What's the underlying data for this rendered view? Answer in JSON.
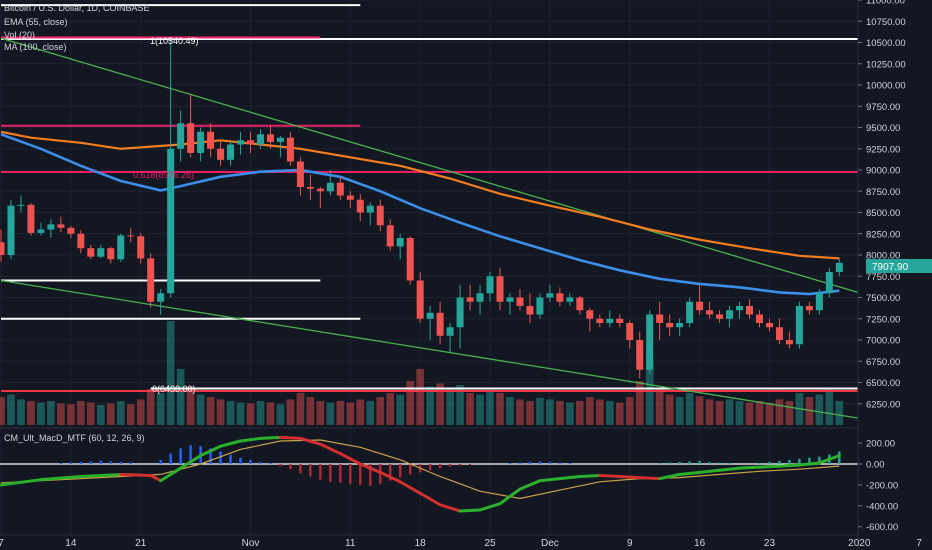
{
  "header": {
    "symbol_line": "Bitcoin / U.S. Dollar, 1D, COINBASE",
    "indicators": [
      "EMA (55, close)",
      "Vol (20)",
      "MA (100, close)"
    ],
    "macd_label": "CM_Ult_MacD_MTF (60, 12, 26, 9)"
  },
  "annotations": {
    "fib_1": "1(10540.49)",
    "fib_0618": "0.618(8976.28)",
    "fib_0": "0(6430.00)"
  },
  "last_price": "7907.90",
  "colors": {
    "background": "#131722",
    "up": "#26a69a",
    "down": "#ef5350",
    "ema55": "#f57c1f",
    "ma100": "#3d8ee8",
    "trend": "#4caf50",
    "fib_line": "#e91e63",
    "support": "#f23645",
    "macd_line": "#2ab02a",
    "signal_line": "#c9a24b"
  },
  "chart_data": [
    {
      "type": "candlestick",
      "title": "Bitcoin / U.S. Dollar, 1D, COINBASE",
      "ylim": [
        6000,
        11000
      ],
      "y_ticks": [
        6250,
        6500,
        6750,
        7000,
        7250,
        7500,
        7750,
        8000,
        8250,
        8500,
        8750,
        9000,
        9250,
        9500,
        9750,
        10000,
        10250,
        10500,
        10750,
        11000
      ],
      "y_tick_labels": [
        "6250.00",
        "6500.00",
        "6750.00",
        "7000.00",
        "7250.00",
        "7500.00",
        "7750.00",
        "8000.00",
        "8250.00",
        "8500.00",
        "8750.00",
        "9000.00",
        "9250.00",
        "9500.00",
        "9750.00",
        "10000.00",
        "10250.00",
        "10500.00",
        "10750.00",
        "11000.00"
      ],
      "x_tick_labels": [
        {
          "label": "7",
          "date": "2019-10-07"
        },
        {
          "label": "14",
          "date": "2019-10-14"
        },
        {
          "label": "21",
          "date": "2019-10-21"
        },
        {
          "label": "Nov",
          "date": "2019-11-01"
        },
        {
          "label": "11",
          "date": "2019-11-11"
        },
        {
          "label": "18",
          "date": "2019-11-18"
        },
        {
          "label": "25",
          "date": "2019-11-25"
        },
        {
          "label": "Dec",
          "date": "2019-12-01"
        },
        {
          "label": "9",
          "date": "2019-12-09"
        },
        {
          "label": "16",
          "date": "2019-12-16"
        },
        {
          "label": "23",
          "date": "2019-12-23"
        },
        {
          "label": "2020",
          "date": "2020-01-01"
        },
        {
          "label": "7",
          "date": "2020-01-07"
        }
      ],
      "start_date": "2019-10-07",
      "ohlc": [
        [
          8150,
          8300,
          7920,
          8000
        ],
        [
          8000,
          8650,
          7950,
          8580
        ],
        [
          8580,
          8700,
          8500,
          8590
        ],
        [
          8590,
          8610,
          8230,
          8260
        ],
        [
          8260,
          8380,
          8230,
          8300
        ],
        [
          8300,
          8420,
          8200,
          8360
        ],
        [
          8360,
          8450,
          8270,
          8320
        ],
        [
          8320,
          8340,
          8200,
          8250
        ],
        [
          8250,
          8290,
          8020,
          8080
        ],
        [
          8080,
          8120,
          7950,
          7980
        ],
        [
          7980,
          8120,
          7960,
          8080
        ],
        [
          8080,
          8100,
          7900,
          7950
        ],
        [
          7950,
          8250,
          7920,
          8230
        ],
        [
          8230,
          8320,
          8150,
          8220
        ],
        [
          8220,
          8260,
          7900,
          7960
        ],
        [
          7960,
          8020,
          7380,
          7450
        ],
        [
          7450,
          7600,
          7300,
          7550
        ],
        [
          7550,
          10540,
          7500,
          9250
        ],
        [
          9250,
          9700,
          9100,
          9550
        ],
        [
          9550,
          9900,
          9150,
          9200
        ],
        [
          9200,
          9500,
          9100,
          9450
        ],
        [
          9450,
          9550,
          9150,
          9250
        ],
        [
          9250,
          9350,
          9050,
          9120
        ],
        [
          9120,
          9350,
          9050,
          9300
        ],
        [
          9300,
          9450,
          9180,
          9350
        ],
        [
          9350,
          9450,
          9200,
          9300
        ],
        [
          9300,
          9480,
          9250,
          9420
        ],
        [
          9420,
          9520,
          9250,
          9330
        ],
        [
          9330,
          9400,
          9150,
          9380
        ],
        [
          9380,
          9450,
          9050,
          9100
        ],
        [
          9100,
          9150,
          8700,
          8800
        ],
        [
          8800,
          8950,
          8650,
          8780
        ],
        [
          8780,
          8800,
          8550,
          8750
        ],
        [
          8750,
          9000,
          8700,
          8850
        ],
        [
          8850,
          8920,
          8650,
          8700
        ],
        [
          8700,
          8750,
          8550,
          8650
        ],
        [
          8650,
          8720,
          8400,
          8500
        ],
        [
          8500,
          8620,
          8350,
          8580
        ],
        [
          8580,
          8650,
          8280,
          8350
        ],
        [
          8350,
          8420,
          8050,
          8100
        ],
        [
          8100,
          8250,
          7950,
          8200
        ],
        [
          8200,
          8220,
          7650,
          7700
        ],
        [
          7700,
          7800,
          7200,
          7250
        ],
        [
          7250,
          7400,
          7000,
          7320
        ],
        [
          7320,
          7450,
          6950,
          7050
        ],
        [
          7050,
          7200,
          6850,
          7150
        ],
        [
          7150,
          7650,
          6900,
          7500
        ],
        [
          7500,
          7650,
          7350,
          7450
        ],
        [
          7450,
          7650,
          7300,
          7550
        ],
        [
          7550,
          7800,
          7450,
          7750
        ],
        [
          7750,
          7850,
          7350,
          7450
        ],
        [
          7450,
          7550,
          7300,
          7500
        ],
        [
          7500,
          7600,
          7350,
          7400
        ],
        [
          7400,
          7550,
          7200,
          7300
        ],
        [
          7300,
          7550,
          7250,
          7500
        ],
        [
          7500,
          7650,
          7450,
          7550
        ],
        [
          7550,
          7620,
          7400,
          7450
        ],
        [
          7450,
          7550,
          7400,
          7500
        ],
        [
          7500,
          7520,
          7300,
          7350
        ],
        [
          7350,
          7380,
          7100,
          7250
        ],
        [
          7250,
          7300,
          7150,
          7200
        ],
        [
          7200,
          7350,
          7150,
          7250
        ],
        [
          7250,
          7300,
          7150,
          7200
        ],
        [
          7200,
          7230,
          6900,
          7000
        ],
        [
          7000,
          7100,
          6550,
          6650
        ],
        [
          6650,
          7350,
          6600,
          7300
        ],
        [
          7300,
          7450,
          7000,
          7200
        ],
        [
          7200,
          7300,
          7050,
          7150
        ],
        [
          7150,
          7250,
          7050,
          7200
        ],
        [
          7200,
          7500,
          7150,
          7450
        ],
        [
          7450,
          7650,
          7300,
          7350
        ],
        [
          7350,
          7450,
          7250,
          7300
        ],
        [
          7300,
          7350,
          7200,
          7250
        ],
        [
          7250,
          7400,
          7150,
          7350
        ],
        [
          7350,
          7450,
          7250,
          7400
        ],
        [
          7400,
          7480,
          7250,
          7300
        ],
        [
          7300,
          7350,
          7150,
          7200
        ],
        [
          7200,
          7250,
          7100,
          7150
        ],
        [
          7150,
          7250,
          6950,
          7000
        ],
        [
          7000,
          7100,
          6900,
          6950
        ],
        [
          6950,
          7450,
          6900,
          7400
        ],
        [
          7400,
          7450,
          7300,
          7350
        ],
        [
          7350,
          7600,
          7300,
          7550
        ],
        [
          7550,
          7850,
          7500,
          7800
        ],
        [
          7800,
          7960,
          7750,
          7907.9
        ]
      ],
      "volume": [
        35,
        38,
        32,
        30,
        28,
        30,
        27,
        26,
        30,
        28,
        25,
        27,
        30,
        26,
        32,
        45,
        40,
        130,
        70,
        48,
        38,
        35,
        32,
        30,
        28,
        27,
        30,
        28,
        26,
        32,
        40,
        35,
        30,
        28,
        30,
        28,
        32,
        30,
        35,
        40,
        38,
        55,
        70,
        48,
        52,
        45,
        50,
        40,
        38,
        42,
        40,
        35,
        32,
        30,
        34,
        32,
        30,
        28,
        30,
        35,
        32,
        30,
        28,
        35,
        55,
        85,
        45,
        38,
        35,
        40,
        36,
        32,
        30,
        32,
        30,
        28,
        30,
        28,
        32,
        30,
        40,
        35,
        38,
        45,
        30
      ],
      "ema55_points": [
        [
          0,
          9450
        ],
        [
          3,
          9380
        ],
        [
          8,
          9320
        ],
        [
          12,
          9250
        ],
        [
          18,
          9300
        ],
        [
          22,
          9350
        ],
        [
          26,
          9300
        ],
        [
          30,
          9250
        ],
        [
          35,
          9150
        ],
        [
          40,
          9050
        ],
        [
          45,
          8900
        ],
        [
          50,
          8720
        ],
        [
          55,
          8580
        ],
        [
          60,
          8450
        ],
        [
          65,
          8300
        ],
        [
          70,
          8180
        ],
        [
          75,
          8080
        ],
        [
          80,
          7990
        ],
        [
          84,
          7960
        ]
      ],
      "ma100_points": [
        [
          0,
          9420
        ],
        [
          4,
          9250
        ],
        [
          8,
          9050
        ],
        [
          12,
          8870
        ],
        [
          16,
          8760
        ],
        [
          18,
          8810
        ],
        [
          22,
          8920
        ],
        [
          26,
          8980
        ],
        [
          30,
          9000
        ],
        [
          34,
          8920
        ],
        [
          38,
          8750
        ],
        [
          42,
          8550
        ],
        [
          46,
          8380
        ],
        [
          50,
          8220
        ],
        [
          54,
          8080
        ],
        [
          58,
          7940
        ],
        [
          62,
          7820
        ],
        [
          66,
          7720
        ],
        [
          70,
          7660
        ],
        [
          74,
          7620
        ],
        [
          78,
          7560
        ],
        [
          81,
          7540
        ],
        [
          84,
          7580
        ]
      ],
      "trend_upper": [
        [
          0,
          10550
        ],
        [
          87,
          7520
        ]
      ],
      "trend_lower": [
        [
          0,
          7700
        ],
        [
          87,
          6060
        ]
      ],
      "fib_levels": [
        10540.49,
        8976.28,
        6430.0
      ],
      "horizontal_lines": [
        {
          "price": 10540.49,
          "color": "white",
          "from": 0,
          "to": 87
        },
        {
          "price": 9520,
          "color": "pink",
          "from": 0,
          "to": 36
        },
        {
          "price": 8976.28,
          "color": "pink",
          "from": 0,
          "to": 87
        },
        {
          "price": 7700,
          "color": "white",
          "from": 0,
          "to": 32
        },
        {
          "price": 7250,
          "color": "white",
          "from": 0,
          "to": 36
        },
        {
          "price": 6430.0,
          "color": "white",
          "from": 15,
          "to": 87
        },
        {
          "price": 6400,
          "color": "red",
          "from": 0,
          "to": 87
        }
      ],
      "top_lines": [
        {
          "price": 10940,
          "color": "white",
          "from": 0,
          "to": 36
        },
        {
          "price": 10560,
          "color": "pink",
          "from": 0,
          "to": 32
        }
      ]
    },
    {
      "type": "line",
      "title": "CM_Ult_MacD_MTF (60, 12, 26, 9)",
      "ylim": [
        -600,
        300
      ],
      "y_ticks": [
        200,
        0,
        -200,
        -400,
        -600
      ],
      "y_tick_labels": [
        "200.00",
        "0.00",
        "-200.00",
        "-400.00",
        "-600.00"
      ],
      "macd_points": [
        [
          0,
          -200
        ],
        [
          4,
          -150
        ],
        [
          8,
          -120
        ],
        [
          12,
          -100
        ],
        [
          15,
          -110
        ],
        [
          16,
          -160
        ],
        [
          18,
          -40
        ],
        [
          20,
          80
        ],
        [
          22,
          170
        ],
        [
          24,
          220
        ],
        [
          26,
          245
        ],
        [
          28,
          255
        ],
        [
          30,
          245
        ],
        [
          32,
          190
        ],
        [
          34,
          100
        ],
        [
          36,
          0
        ],
        [
          38,
          -80
        ],
        [
          40,
          -170
        ],
        [
          42,
          -280
        ],
        [
          44,
          -390
        ],
        [
          46,
          -450
        ],
        [
          48,
          -440
        ],
        [
          50,
          -380
        ],
        [
          52,
          -240
        ],
        [
          54,
          -160
        ],
        [
          56,
          -140
        ],
        [
          58,
          -120
        ],
        [
          60,
          -110
        ],
        [
          62,
          -120
        ],
        [
          64,
          -130
        ],
        [
          66,
          -140
        ],
        [
          68,
          -100
        ],
        [
          70,
          -80
        ],
        [
          72,
          -60
        ],
        [
          74,
          -40
        ],
        [
          76,
          -30
        ],
        [
          78,
          -20
        ],
        [
          80,
          -10
        ],
        [
          82,
          10
        ],
        [
          84,
          80
        ]
      ],
      "signal_points": [
        [
          0,
          -180
        ],
        [
          6,
          -150
        ],
        [
          12,
          -120
        ],
        [
          16,
          -100
        ],
        [
          20,
          0
        ],
        [
          24,
          140
        ],
        [
          28,
          220
        ],
        [
          32,
          230
        ],
        [
          36,
          160
        ],
        [
          40,
          40
        ],
        [
          44,
          -120
        ],
        [
          48,
          -260
        ],
        [
          52,
          -330
        ],
        [
          56,
          -250
        ],
        [
          60,
          -170
        ],
        [
          64,
          -140
        ],
        [
          68,
          -130
        ],
        [
          72,
          -100
        ],
        [
          76,
          -70
        ],
        [
          80,
          -50
        ],
        [
          84,
          -20
        ]
      ],
      "histogram": [
        0,
        0,
        0,
        0,
        0,
        0,
        10,
        15,
        20,
        25,
        30,
        25,
        20,
        15,
        0,
        0,
        40,
        100,
        150,
        180,
        170,
        150,
        120,
        90,
        60,
        40,
        20,
        10,
        -20,
        -50,
        -90,
        -120,
        -150,
        -170,
        -180,
        -190,
        -200,
        -210,
        -190,
        -160,
        -130,
        -100,
        -80,
        -60,
        -40,
        -25,
        -15,
        -10,
        0,
        0,
        0,
        10,
        15,
        20,
        25,
        20,
        15,
        10,
        0,
        0,
        0,
        0,
        0,
        0,
        0,
        0,
        10,
        15,
        20,
        25,
        30,
        20,
        15,
        10,
        0,
        0,
        10,
        20,
        30,
        40,
        50,
        60,
        70,
        90,
        120
      ]
    }
  ]
}
